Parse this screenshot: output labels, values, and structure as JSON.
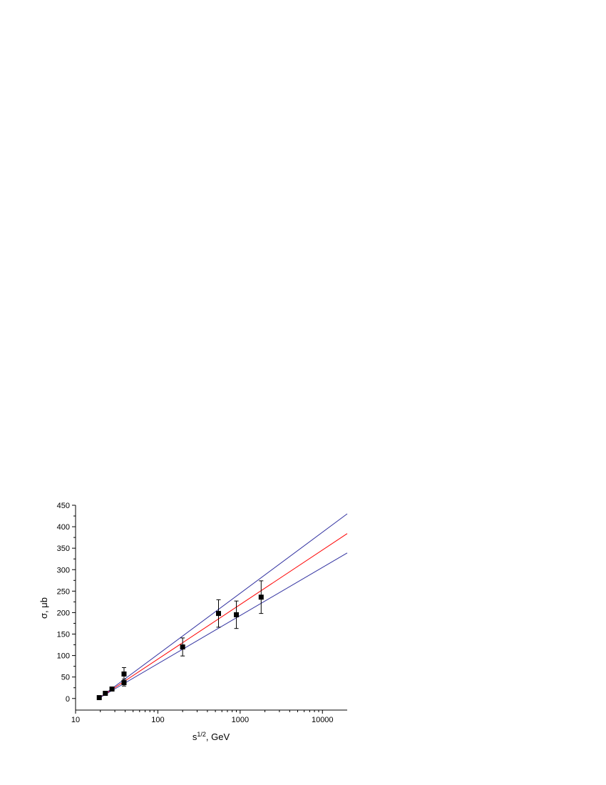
{
  "chart_data": {
    "type": "scatter",
    "y_label": "σ, μb",
    "x_label": {
      "base": "s",
      "sup": "1/2",
      "rest": ", GeV"
    },
    "x_scale": "log",
    "xlim": [
      10,
      20000
    ],
    "xticks": [
      10,
      100,
      1000,
      10000
    ],
    "x_minor_ticks": [
      20,
      30,
      40,
      50,
      60,
      70,
      80,
      90,
      200,
      300,
      400,
      500,
      600,
      700,
      800,
      900,
      2000,
      3000,
      4000,
      5000,
      6000,
      7000,
      8000,
      9000
    ],
    "ylim": [
      -27,
      450
    ],
    "yticks": [
      0,
      50,
      100,
      150,
      200,
      250,
      300,
      350,
      400,
      450
    ],
    "y_minor_ticks": [
      25,
      75,
      125,
      175,
      225,
      275,
      325,
      375,
      425
    ],
    "series": [
      {
        "kind": "points",
        "color": "#000000",
        "x": [
          19.4,
          23,
          27.7,
          38.8,
          38.8,
          200,
          546,
          900,
          1800
        ],
        "values": [
          2,
          12,
          22,
          57,
          37,
          120,
          198,
          195,
          236
        ],
        "errors": [
          2,
          2,
          3,
          15,
          8,
          21,
          32,
          32,
          38
        ]
      },
      {
        "kind": "line",
        "color": "#3030a0",
        "x": [
          19,
          20000
        ],
        "values": [
          0,
          430
        ]
      },
      {
        "kind": "line",
        "color": "#ff0000",
        "x": [
          19,
          20000
        ],
        "values": [
          0,
          384
        ]
      },
      {
        "kind": "line",
        "color": "#3030a0",
        "x": [
          19,
          20000
        ],
        "values": [
          0,
          339
        ]
      }
    ]
  }
}
